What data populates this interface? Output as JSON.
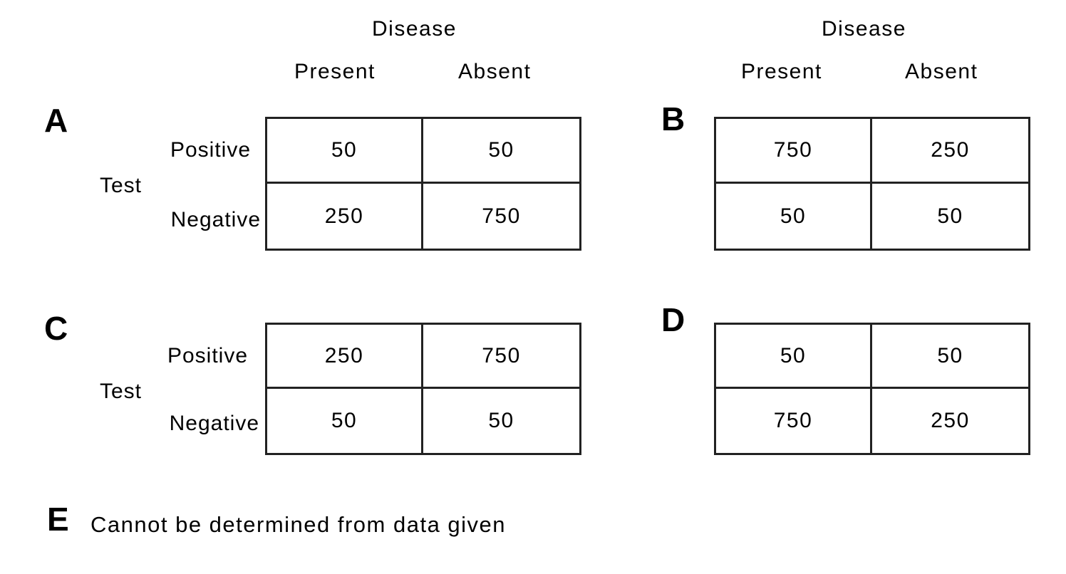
{
  "column_header": "Disease",
  "columns": [
    "Present",
    "Absent"
  ],
  "row_header": "Test",
  "rows": [
    "Positive",
    "Negative"
  ],
  "options": [
    {
      "letter": "A",
      "values": [
        [
          "50",
          "50"
        ],
        [
          "250",
          "750"
        ]
      ]
    },
    {
      "letter": "B",
      "values": [
        [
          "750",
          "250"
        ],
        [
          "50",
          "50"
        ]
      ]
    },
    {
      "letter": "C",
      "values": [
        [
          "250",
          "750"
        ],
        [
          "50",
          "50"
        ]
      ]
    },
    {
      "letter": "D",
      "values": [
        [
          "50",
          "50"
        ],
        [
          "750",
          "250"
        ]
      ]
    }
  ],
  "option_e": {
    "letter": "E",
    "text": "Cannot be determined from data given"
  }
}
